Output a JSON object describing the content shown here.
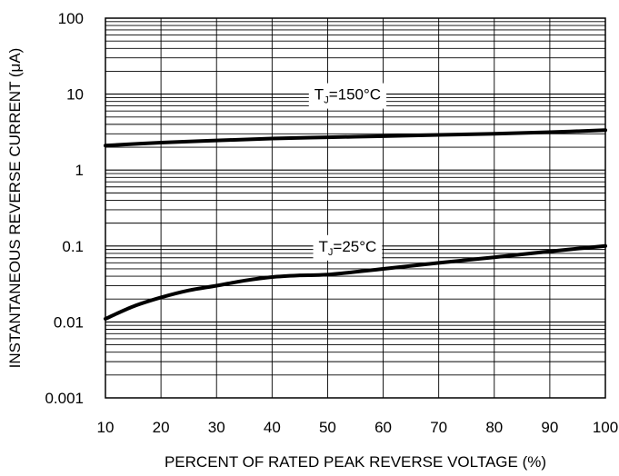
{
  "chart_data": {
    "type": "line",
    "xlabel": "PERCENT OF RATED PEAK REVERSE VOLTAGE (%)",
    "ylabel": "INSTANTANEOUS REVERSE CURRENT (μA)",
    "xlim": [
      10,
      100
    ],
    "ylim": [
      0.001,
      100
    ],
    "y_scale": "log",
    "grid": true,
    "x_ticks": [
      "10",
      "20",
      "30",
      "40",
      "50",
      "60",
      "70",
      "80",
      "90",
      "100"
    ],
    "y_ticks": [
      "0.001",
      "0.01",
      "0.1",
      "1",
      "10",
      "100"
    ],
    "x_tick_values": [
      10,
      20,
      30,
      40,
      50,
      60,
      70,
      80,
      90,
      100
    ],
    "y_tick_values": [
      0.001,
      0.01,
      0.1,
      1,
      10,
      100
    ],
    "series": [
      {
        "x": [
          10,
          20,
          30,
          40,
          50,
          60,
          70,
          80,
          90,
          100
        ],
        "y": [
          2.1,
          2.3,
          2.45,
          2.6,
          2.7,
          2.8,
          2.9,
          3.0,
          3.15,
          3.35
        ]
      },
      {
        "x": [
          10,
          15,
          20,
          25,
          30,
          35,
          40,
          45,
          50,
          60,
          70,
          80,
          90,
          100
        ],
        "y": [
          0.011,
          0.016,
          0.021,
          0.026,
          0.03,
          0.035,
          0.039,
          0.041,
          0.042,
          0.05,
          0.06,
          0.071,
          0.085,
          0.1
        ]
      }
    ],
    "annotations": [
      {
        "main": "T",
        "sub": "J",
        "rest": "=150°C",
        "x": 50,
        "y": 10
      },
      {
        "main": "T",
        "sub": "J",
        "rest": "=25°C",
        "x": 50,
        "y": 0.1
      }
    ]
  }
}
